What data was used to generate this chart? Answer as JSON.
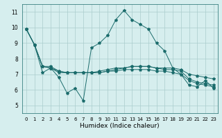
{
  "title": "",
  "xlabel": "Humidex (Indice chaleur)",
  "background_color": "#d6eeee",
  "line_color": "#1a6b6b",
  "grid_color": "#aacccc",
  "xlim": [
    -0.5,
    23.5
  ],
  "ylim": [
    4.5,
    11.5
  ],
  "xticks": [
    0,
    1,
    2,
    3,
    4,
    5,
    6,
    7,
    8,
    9,
    10,
    11,
    12,
    13,
    14,
    15,
    16,
    17,
    18,
    19,
    20,
    21,
    22,
    23
  ],
  "yticks": [
    5,
    6,
    7,
    8,
    9,
    10,
    11
  ],
  "series": [
    [
      9.9,
      8.9,
      7.1,
      7.4,
      6.8,
      5.8,
      6.1,
      5.3,
      8.7,
      9.0,
      9.5,
      10.5,
      11.1,
      10.5,
      10.2,
      9.9,
      9.0,
      8.5,
      7.4,
      7.0,
      6.3,
      6.2,
      6.6,
      6.1
    ],
    [
      9.9,
      8.9,
      7.5,
      7.4,
      7.2,
      7.1,
      7.1,
      7.1,
      7.1,
      7.1,
      7.2,
      7.3,
      7.4,
      7.5,
      7.5,
      7.5,
      7.4,
      7.4,
      7.4,
      7.3,
      7.0,
      6.9,
      6.8,
      6.7
    ],
    [
      9.9,
      8.9,
      7.5,
      7.4,
      7.1,
      7.1,
      7.1,
      7.1,
      7.1,
      7.2,
      7.3,
      7.4,
      7.4,
      7.5,
      7.5,
      7.5,
      7.4,
      7.3,
      7.3,
      7.2,
      6.7,
      6.5,
      6.4,
      6.3
    ],
    [
      9.9,
      8.9,
      7.5,
      7.5,
      7.2,
      7.1,
      7.1,
      7.1,
      7.1,
      7.1,
      7.2,
      7.2,
      7.3,
      7.3,
      7.3,
      7.3,
      7.2,
      7.2,
      7.1,
      7.0,
      6.6,
      6.4,
      6.3,
      6.2
    ]
  ],
  "marker": "*",
  "markersize": 3,
  "linewidth": 0.7,
  "tick_labelsize": 5,
  "xlabel_fontsize": 6.5
}
